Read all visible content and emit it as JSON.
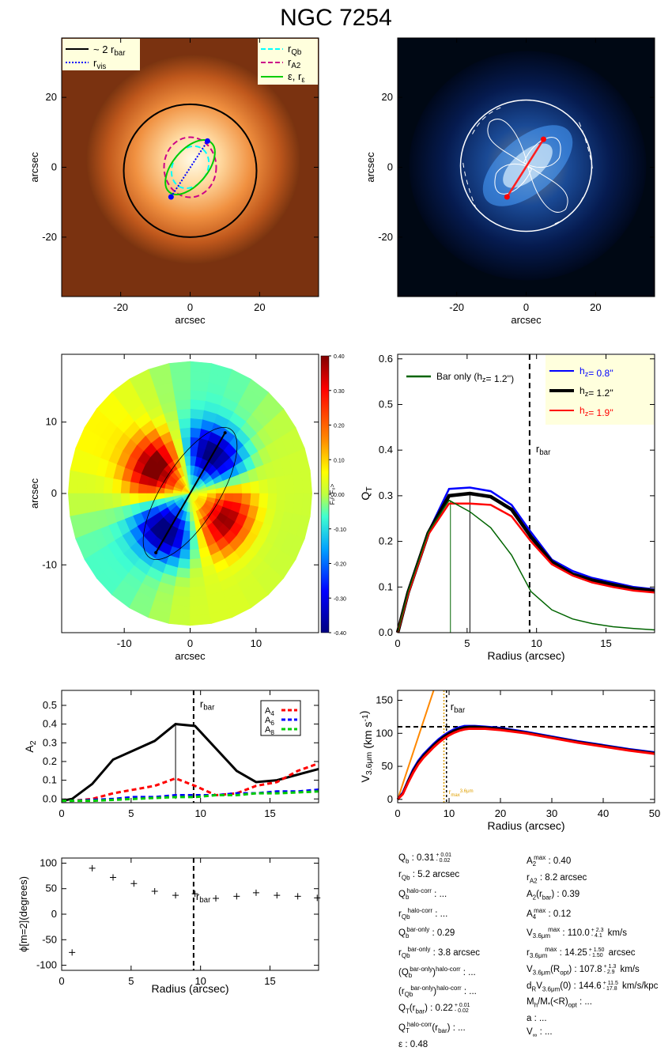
{
  "title": "NGC 7254",
  "colors": {
    "black": "#000000",
    "blue": "#0000ff",
    "red": "#ff0000",
    "green": "#00cc00",
    "dkgreen": "#006400",
    "cyan": "#00ffff",
    "magenta": "#cc0088",
    "orange": "#ff8800",
    "gold": "#e0a000",
    "legendbg": "#ffffdd"
  },
  "chart_data": [
    {
      "type": "image",
      "panel": "bar image",
      "xlabel": "arcsec",
      "ylabel": "arcsec",
      "xlim": [
        -37,
        37
      ],
      "ylim": [
        -37,
        37
      ],
      "xticks": [
        "-20",
        "0",
        "20"
      ],
      "yticks": [
        "20",
        "0",
        "-20"
      ],
      "legend": [
        {
          "label": "~ 2 r",
          "sub": "bar",
          "style": "solid black"
        },
        {
          "label": "r",
          "sub": "vis",
          "style": "dotted blue"
        },
        {
          "label": "r",
          "sub": "Qb",
          "style": "dashed cyan"
        },
        {
          "label": "r",
          "sub": "A2",
          "style": "dashed magenta"
        },
        {
          "label": "ε, r",
          "sub": "ε",
          "style": "solid green"
        }
      ]
    },
    {
      "type": "image",
      "panel": "force map",
      "xlabel": "arcsec",
      "ylabel": "arcsec",
      "xlim": [
        -37,
        37
      ],
      "ylim": [
        -37,
        37
      ],
      "xticks": [
        "-20",
        "0",
        "20"
      ],
      "yticks": [
        "20",
        "0",
        "-20"
      ]
    },
    {
      "type": "heatmap",
      "panel": "Fr/<F0> map",
      "xlabel": "arcsec",
      "ylabel": "arcsec",
      "xlim": [
        -19.5,
        19.5
      ],
      "ylim": [
        -19.5,
        19.5
      ],
      "xticks": [
        "-10",
        "0",
        "10"
      ],
      "yticks": [
        "10",
        "0",
        "-10"
      ],
      "colorbar": {
        "label": "Fᵣ/<F₀>",
        "range": [
          -0.4,
          0.4
        ],
        "ticks": [
          "0.40",
          "0.30",
          "0.20",
          "0.10",
          "0.00",
          "-0.10",
          "-0.20",
          "-0.30",
          "-0.40"
        ]
      }
    },
    {
      "type": "line",
      "panel": "QT profile",
      "xlabel": "Radius (arcsec)",
      "ylabel": "Q",
      "ylabel_sub": "T",
      "xlim": [
        0,
        18.5
      ],
      "ylim": [
        0,
        0.61
      ],
      "xticks": [
        0,
        5,
        10,
        15
      ],
      "yticks": [
        0.0,
        0.1,
        0.2,
        0.3,
        0.4,
        0.5,
        0.6
      ],
      "rbar": 9.5,
      "rbar_label": "r",
      "rbar_sub": "bar",
      "x": [
        0,
        0.75,
        2.2,
        3.7,
        5.2,
        6.7,
        8.2,
        9.6,
        11.1,
        12.6,
        14.0,
        15.5,
        17.0,
        18.5
      ],
      "series": [
        {
          "name": "h",
          "sub": "z",
          "value": "=   0.8''",
          "color": "#0000ff",
          "values": [
            0,
            0.09,
            0.22,
            0.315,
            0.318,
            0.31,
            0.28,
            0.22,
            0.16,
            0.135,
            0.12,
            0.11,
            0.1,
            0.095
          ]
        },
        {
          "name": "h",
          "sub": "z",
          "value": "=   1.2''",
          "color": "#000000",
          "values": [
            0,
            0.088,
            0.218,
            0.3,
            0.305,
            0.298,
            0.27,
            0.21,
            0.155,
            0.128,
            0.115,
            0.105,
            0.096,
            0.092
          ]
        },
        {
          "name": "h",
          "sub": "z",
          "value": "=   1.9''",
          "color": "#ff0000",
          "values": [
            0,
            0.085,
            0.215,
            0.283,
            0.283,
            0.28,
            0.255,
            0.2,
            0.15,
            0.125,
            0.11,
            0.1,
            0.092,
            0.088
          ]
        },
        {
          "name": "Bar only (h",
          "sub": "z",
          "value": "=   1.2'')",
          "color": "#006400",
          "values": [
            0,
            0.09,
            0.22,
            0.29,
            0.265,
            0.23,
            0.17,
            0.09,
            0.05,
            0.03,
            0.02,
            0.013,
            0.009,
            0.006
          ]
        }
      ],
      "markers": [
        3.8,
        5.2
      ]
    },
    {
      "type": "line",
      "panel": "Fourier amplitudes",
      "xlabel": "",
      "ylabel": "A",
      "ylabel_sub": "2",
      "xlim": [
        0,
        18.5
      ],
      "ylim": [
        -0.02,
        0.58
      ],
      "xticks": [
        0,
        5,
        10,
        15
      ],
      "yticks": [
        0.0,
        0.1,
        0.2,
        0.3,
        0.4,
        0.5
      ],
      "rbar": 9.5,
      "rbar_label": "r",
      "rbar_sub": "bar",
      "x": [
        0,
        0.75,
        2.2,
        3.7,
        5.2,
        6.7,
        8.2,
        9.6,
        11.1,
        12.6,
        14.0,
        15.5,
        17.0,
        18.5
      ],
      "series": [
        {
          "name": "A2",
          "color": "#000000",
          "values": [
            -0.01,
            0.0,
            0.08,
            0.21,
            0.26,
            0.31,
            0.4,
            0.39,
            0.27,
            0.15,
            0.09,
            0.1,
            0.13,
            0.16
          ]
        },
        {
          "name": "A",
          "sub": "4",
          "color": "#ff0000",
          "values": [
            -0.01,
            -0.01,
            0.0,
            0.03,
            0.05,
            0.07,
            0.11,
            0.07,
            0.02,
            0.03,
            0.07,
            0.09,
            0.15,
            0.19
          ]
        },
        {
          "name": "A",
          "sub": "6",
          "color": "#0000ff",
          "values": [
            -0.01,
            -0.01,
            -0.005,
            0.0,
            0.01,
            0.01,
            0.02,
            0.02,
            0.02,
            0.03,
            0.03,
            0.04,
            0.04,
            0.05
          ]
        },
        {
          "name": "A",
          "sub": "8",
          "color": "#00cc00",
          "values": [
            -0.01,
            -0.01,
            -0.01,
            -0.005,
            0.0,
            0.005,
            0.01,
            0.01,
            0.02,
            0.02,
            0.03,
            0.03,
            0.035,
            0.04
          ]
        }
      ],
      "markers": [
        8.2
      ]
    },
    {
      "type": "line",
      "panel": "rotation curve",
      "xlabel": "Radius (arcsec)",
      "ylabel": "V",
      "ylabel_sub": "3.6μm",
      "ylabel_unit": "(km s",
      "ylabel_unit_sup": "-1",
      "xlim": [
        0,
        50
      ],
      "ylim": [
        -5,
        165
      ],
      "xticks": [
        0,
        10,
        20,
        30,
        40,
        50
      ],
      "yticks": [
        0,
        50,
        100,
        150
      ],
      "rbar": 9.5,
      "rbar_label": "r",
      "rbar_sub": "bar",
      "vmax": 110,
      "rmax_label": "r",
      "rmax_sub": "max",
      "rmax_sup": "3.6μm",
      "x": [
        0,
        1,
        2,
        3,
        4,
        5,
        6,
        7,
        8,
        9,
        10,
        11,
        12,
        13,
        14,
        15,
        17,
        20,
        25,
        30,
        35,
        40,
        45,
        50
      ],
      "series": [
        {
          "name": "blue",
          "color": "#0000ff",
          "values": [
            0,
            10,
            28,
            45,
            58,
            68,
            76,
            84,
            91,
            97,
            102,
            106,
            109,
            111,
            111,
            111,
            110,
            108,
            102,
            95,
            88,
            82,
            76,
            71
          ]
        },
        {
          "name": "black",
          "color": "#000000",
          "values": [
            0,
            9,
            27,
            43,
            56,
            66,
            74,
            82,
            89,
            95,
            100,
            104,
            107,
            109,
            110,
            110,
            109,
            107,
            101,
            94,
            87,
            81,
            75,
            70
          ]
        },
        {
          "name": "red",
          "color": "#ff0000",
          "values": [
            0,
            8,
            25,
            40,
            53,
            63,
            71,
            79,
            86,
            92,
            97,
            101,
            104,
            106,
            107,
            107,
            107,
            105,
            100,
            93,
            86,
            80,
            74,
            69
          ]
        }
      ]
    },
    {
      "type": "scatter",
      "panel": "bar phase",
      "xlabel": "Radius (arcsec)",
      "ylabel": "ϕ[m=2](degrees)",
      "xlim": [
        0,
        18.5
      ],
      "ylim": [
        -110,
        110
      ],
      "xticks": [
        0,
        5,
        10,
        15
      ],
      "yticks": [
        100,
        50,
        0,
        -50,
        -100
      ],
      "rbar": 9.5,
      "rbar_label": "r",
      "rbar_sub": "bar",
      "points": [
        [
          0.75,
          -75
        ],
        [
          2.2,
          90
        ],
        [
          3.7,
          72
        ],
        [
          5.2,
          60
        ],
        [
          6.7,
          45
        ],
        [
          8.2,
          37
        ],
        [
          9.6,
          40
        ],
        [
          11.1,
          31
        ],
        [
          12.6,
          35
        ],
        [
          14.0,
          42
        ],
        [
          15.5,
          37
        ],
        [
          17.0,
          35
        ],
        [
          18.4,
          32
        ]
      ]
    }
  ],
  "table": {
    "left": [
      {
        "sym": "Q",
        "sub": "b",
        "val": ":  0.31",
        "err": [
          "0.01",
          "0.02"
        ]
      },
      {
        "sym": "r",
        "sub": "Qb",
        "val": ":   5.2  arcsec"
      },
      {
        "sym": "Q",
        "sub": "b",
        "sup": "halo-corr",
        "val": ": ..."
      },
      {
        "sym": "r",
        "sub": "Qb",
        "sup": "halo-corr",
        "val": ": ..."
      },
      {
        "sym": "Q",
        "sub": "b",
        "sup": "bar-only",
        "val": ":   0.29"
      },
      {
        "sym": "r",
        "sub": "Qb",
        "sup": "bar-only",
        "val": ":   3.8 arcsec"
      },
      {
        "sym": "(Q",
        "sub": "b",
        "sup": "bar-only",
        "post": ")",
        "post_sup": "halo-corr",
        "val": ": ..."
      },
      {
        "sym": "(r",
        "sub": "Qb",
        "sup": "bar-only",
        "post": ")",
        "post_sup": "halo-corr",
        "val": ": ..."
      },
      {
        "sym": "Q",
        "sub": "T",
        "post": "(r",
        "post_sub": "bar",
        "post2": ")",
        "val": ":  0.22",
        "err": [
          "0.01",
          "0.02"
        ]
      },
      {
        "sym": "Q",
        "sub": "T",
        "sup": "halo-corr",
        "post": "(r",
        "post_sub": "bar",
        "post2": ")",
        "val": ": ..."
      },
      {
        "sym": "ε",
        "val": ":  0.48"
      }
    ],
    "right": [
      {
        "sym": "A",
        "sub": "2",
        "sup": "max",
        "val": ":  0.40"
      },
      {
        "sym": "r",
        "sub": "A2",
        "val": ":   8.2 arcsec"
      },
      {
        "sym": "A",
        "sub": "2",
        "post": "(r",
        "post_sub": "bar",
        "post2": ")",
        "val": ":  0.39"
      },
      {
        "sym": "A",
        "sub": "4",
        "sup": "max",
        "val": ":  0.12"
      },
      {
        "sym": "V",
        "sub": "3.6μm",
        "sup": "max",
        "val": ":  110.0",
        "err": [
          "2.3",
          "4.1"
        ],
        "unit": " km/s"
      },
      {
        "sym": "r",
        "sub": "3.6μm",
        "sup": "max",
        "val": ":  14.25",
        "err": [
          "1.50",
          "1.50"
        ],
        "unit": " arcsec"
      },
      {
        "sym": "V",
        "sub": "3.6μm",
        "post": "(R",
        "post_sub": "opt",
        "post2": ")",
        "val": ":  107.8",
        "err": [
          "1.3",
          "2.9"
        ],
        "unit": " km/s"
      },
      {
        "sym": "d",
        "sub": "R",
        "post": "V",
        "post_sub": "3.6μm",
        "post2": "(0)",
        "val": ":  144.6",
        "err": [
          "11.5",
          "17.8"
        ],
        "unit": " km/s/kpc"
      },
      {
        "sym": "M",
        "sub": "h",
        "post": "/M",
        "post_sub": "*",
        "post2": "(<R",
        "post3_sub": "opt",
        "post3": ")",
        "val": ": ..."
      },
      {
        "sym": "a",
        "val": ": ..."
      },
      {
        "sym": "V",
        "sub": "∞",
        "val": ": ..."
      }
    ]
  }
}
